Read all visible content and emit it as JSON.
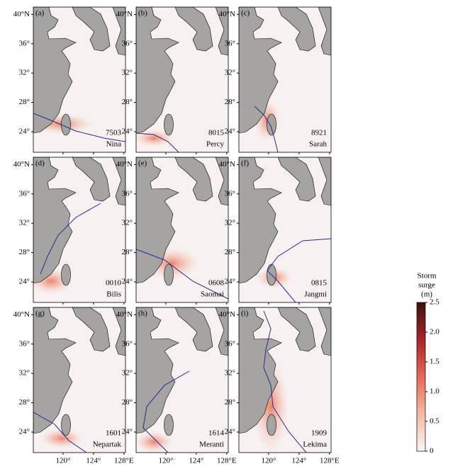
{
  "panels": [
    {
      "label": "(a)",
      "id": "7503",
      "name": "Nina"
    },
    {
      "label": "(b)",
      "id": "8015",
      "name": "Percy"
    },
    {
      "label": "(c)",
      "id": "8921",
      "name": "Sarah"
    },
    {
      "label": "(d)",
      "id": "0010",
      "name": "Bilis"
    },
    {
      "label": "(e)",
      "id": "0608",
      "name": "Saomai"
    },
    {
      "label": "(f)",
      "id": "0815",
      "name": "Jangmi"
    },
    {
      "label": "(g)",
      "id": "1601",
      "name": "Nepartak"
    },
    {
      "label": "(h)",
      "id": "1614",
      "name": "Meranti"
    },
    {
      "label": "(i)",
      "id": "1909",
      "name": "Lekima"
    }
  ],
  "map": {
    "latlim": [
      21.2,
      41
    ],
    "lonlim": [
      116.1,
      128.2
    ],
    "latticks": [
      {
        "value": 40,
        "label": "40°N"
      },
      {
        "value": 36,
        "label": "36°"
      },
      {
        "value": 32,
        "label": "32°"
      },
      {
        "value": 28,
        "label": "28°"
      },
      {
        "value": 24,
        "label": "24°"
      }
    ],
    "lonticks": [
      {
        "value": 120,
        "label": "120°"
      },
      {
        "value": 124,
        "label": "124°"
      },
      {
        "value": 128,
        "label": "128°E"
      }
    ]
  },
  "colorbar": {
    "title": [
      "Storm",
      "surge",
      "(m)"
    ],
    "lim": [
      0,
      2.5
    ],
    "ticks": [
      0,
      0.5,
      {
        "value": 1,
        "label": "1.0"
      },
      1.5,
      {
        "value": 2,
        "label": "2.0"
      },
      2.5
    ]
  }
}
